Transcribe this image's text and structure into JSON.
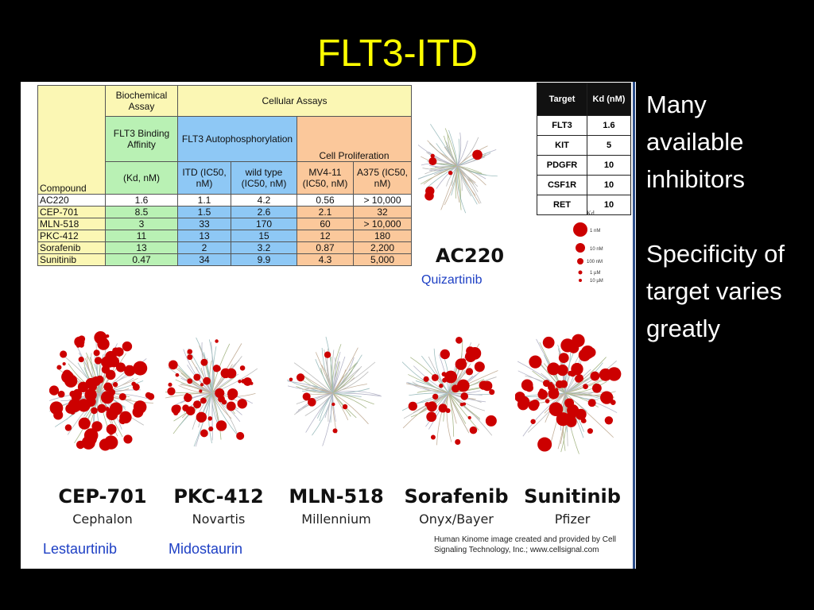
{
  "title": "FLT3-ITD",
  "assay_table": {
    "group_biochemical": "Biochemical Assay",
    "group_cellular": "Cellular Assays",
    "sub_binding": "FLT3 Binding Affinity",
    "sub_autophos": "FLT3 Autophosphorylation",
    "sub_prolif": "Cell Proliferation",
    "col_compound": "Compound",
    "col_kd": "(Kd, nM)",
    "col_itd": "ITD (IC50, nM)",
    "col_wt": "wild type (IC50, nM)",
    "col_mv411": "MV4-11 (IC50, nM)",
    "col_a375": "A375 (IC50, nM)",
    "rows": [
      {
        "compound": "AC220",
        "kd": "1.6",
        "itd": "1.1",
        "wt": "4.2",
        "mv411": "0.56",
        "a375": "> 10,000"
      },
      {
        "compound": "CEP-701",
        "kd": "8.5",
        "itd": "1.5",
        "wt": "2.6",
        "mv411": "2.1",
        "a375": "32"
      },
      {
        "compound": "MLN-518",
        "kd": "3",
        "itd": "33",
        "wt": "170",
        "mv411": "60",
        "a375": "> 10,000"
      },
      {
        "compound": "PKC-412",
        "kd": "11",
        "itd": "13",
        "wt": "15",
        "mv411": "12",
        "a375": "180"
      },
      {
        "compound": "Sorafenib",
        "kd": "13",
        "itd": "2",
        "wt": "3.2",
        "mv411": "0.87",
        "a375": "2,200"
      },
      {
        "compound": "Sunitinib",
        "kd": "0.47",
        "itd": "34",
        "wt": "9.9",
        "mv411": "4.3",
        "a375": "5,000"
      }
    ]
  },
  "kd_table": {
    "col_target": "Target",
    "col_kd": "Kd (nM)",
    "rows": [
      {
        "target": "FLT3",
        "kd": "1.6"
      },
      {
        "target": "KIT",
        "kd": "5"
      },
      {
        "target": "PDGFR",
        "kd": "10"
      },
      {
        "target": "CSF1R",
        "kd": "10"
      },
      {
        "target": "RET",
        "kd": "10"
      }
    ]
  },
  "kd_legend": {
    "title": "Kd",
    "items": [
      "1 nM",
      "10 nM",
      "100 nM",
      "1 µM",
      "10 µM"
    ]
  },
  "kinome": {
    "ac220": {
      "name": "AC220",
      "alias": "Quizartinib"
    },
    "items": [
      {
        "name": "CEP-701",
        "company": "Cephalon",
        "alias": "Lestaurtinib"
      },
      {
        "name": "PKC-412",
        "company": "Novartis",
        "alias": "Midostaurin"
      },
      {
        "name": "MLN-518",
        "company": "Millennium",
        "alias": ""
      },
      {
        "name": "Sorafenib",
        "company": "Onyx/Bayer",
        "alias": ""
      },
      {
        "name": "Sunitinib",
        "company": "Pfizer",
        "alias": ""
      }
    ]
  },
  "credit": "Human Kinome image created and provided by Cell Signaling Technology, Inc.; www.cellsignal.com",
  "side_text": {
    "point1": "Many available inhibitors",
    "point2": "Specificity of target varies greatly"
  },
  "colors": {
    "title": "#ffff00",
    "alias": "#1d3fc4",
    "dot": "#cc0000"
  }
}
